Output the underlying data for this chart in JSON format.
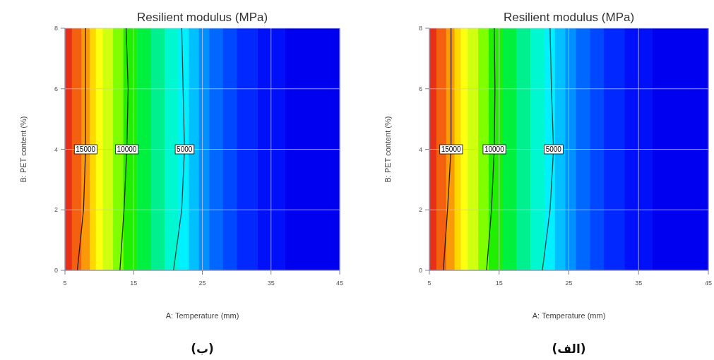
{
  "chart_data": [
    {
      "type": "line",
      "title": "Resilient modulus (MPa)",
      "xlabel": "A: Temperature (mm)",
      "ylabel": "B: PET content (%)",
      "annotations": [
        "(ب)"
      ],
      "xlim": [
        5,
        45
      ],
      "ylim": [
        0,
        8
      ],
      "xticks": [
        5,
        15,
        25,
        35,
        45
      ],
      "yticks": [
        0,
        2,
        4,
        6,
        8
      ],
      "grid": true,
      "marker": "none",
      "line_style": "solid",
      "bands": [
        {
          "axis": "x",
          "from": 5,
          "to": 6,
          "color": "#e83018"
        },
        {
          "axis": "x",
          "from": 6,
          "to": 7.4,
          "color": "#f26010"
        },
        {
          "axis": "x",
          "from": 7.4,
          "to": 8.6,
          "color": "#fa9a08"
        },
        {
          "axis": "x",
          "from": 8.6,
          "to": 9.5,
          "color": "#ffd800"
        },
        {
          "axis": "x",
          "from": 9.5,
          "to": 10.5,
          "color": "#ffff10"
        },
        {
          "axis": "x",
          "from": 10.5,
          "to": 12,
          "color": "#d0ff10"
        },
        {
          "axis": "x",
          "from": 12,
          "to": 13.5,
          "color": "#80ff00"
        },
        {
          "axis": "x",
          "from": 13.5,
          "to": 15.5,
          "color": "#20f000"
        },
        {
          "axis": "x",
          "from": 15.5,
          "to": 17.5,
          "color": "#00f040"
        },
        {
          "axis": "x",
          "from": 17.5,
          "to": 19.5,
          "color": "#00f090"
        },
        {
          "axis": "x",
          "from": 19.5,
          "to": 21.5,
          "color": "#00f8d0"
        },
        {
          "axis": "x",
          "from": 21.5,
          "to": 23,
          "color": "#00f0ff"
        },
        {
          "axis": "x",
          "from": 23,
          "to": 24.5,
          "color": "#00c0ff"
        },
        {
          "axis": "x",
          "from": 24.5,
          "to": 26,
          "color": "#0090ff"
        },
        {
          "axis": "x",
          "from": 26,
          "to": 28,
          "color": "#0068ff"
        },
        {
          "axis": "x",
          "from": 28,
          "to": 30,
          "color": "#0048ff"
        },
        {
          "axis": "x",
          "from": 30,
          "to": 33,
          "color": "#0028ff"
        },
        {
          "axis": "x",
          "from": 33,
          "to": 37,
          "color": "#0010f8"
        },
        {
          "axis": "x",
          "from": 37,
          "to": 45,
          "color": "#0000f0"
        }
      ],
      "series": [
        {
          "name": "15000",
          "color": "#301808",
          "x": [
            6.8,
            7.7,
            8.0,
            8.0,
            8.0
          ],
          "values": [
            0,
            2,
            4,
            6,
            8
          ]
        },
        {
          "name": "10000",
          "color": "#103010",
          "x": [
            13.0,
            13.6,
            14.0,
            14.2,
            13.9
          ],
          "values": [
            0,
            2,
            4,
            6,
            8
          ]
        },
        {
          "name": "5000",
          "color": "#104848",
          "x": [
            20.8,
            22.0,
            22.4,
            22.2,
            22.0
          ],
          "values": [
            0,
            2,
            4,
            6,
            8
          ]
        }
      ]
    },
    {
      "type": "line",
      "title": "Resilient modulus (MPa)",
      "xlabel": "A: Temperature (mm)",
      "ylabel": "B: PET content (%)",
      "annotations": [
        "(الف)"
      ],
      "xlim": [
        5,
        45
      ],
      "ylim": [
        0,
        8
      ],
      "xticks": [
        5,
        15,
        25,
        35,
        45
      ],
      "yticks": [
        0,
        2,
        4,
        6,
        8
      ],
      "grid": true,
      "marker": "none",
      "line_style": "solid",
      "bands": [
        {
          "axis": "x",
          "from": 5,
          "to": 6,
          "color": "#e83018"
        },
        {
          "axis": "x",
          "from": 6,
          "to": 7.4,
          "color": "#f26010"
        },
        {
          "axis": "x",
          "from": 7.4,
          "to": 8.6,
          "color": "#fa9a08"
        },
        {
          "axis": "x",
          "from": 8.6,
          "to": 9.5,
          "color": "#ffd800"
        },
        {
          "axis": "x",
          "from": 9.5,
          "to": 10.5,
          "color": "#ffff10"
        },
        {
          "axis": "x",
          "from": 10.5,
          "to": 12,
          "color": "#d0ff10"
        },
        {
          "axis": "x",
          "from": 12,
          "to": 13.5,
          "color": "#80ff00"
        },
        {
          "axis": "x",
          "from": 13.5,
          "to": 15.5,
          "color": "#20f000"
        },
        {
          "axis": "x",
          "from": 15.5,
          "to": 17.5,
          "color": "#00f040"
        },
        {
          "axis": "x",
          "from": 17.5,
          "to": 19.5,
          "color": "#00f090"
        },
        {
          "axis": "x",
          "from": 19.5,
          "to": 21.5,
          "color": "#00f8d0"
        },
        {
          "axis": "x",
          "from": 21.5,
          "to": 23,
          "color": "#00f0ff"
        },
        {
          "axis": "x",
          "from": 23,
          "to": 24.5,
          "color": "#00c0ff"
        },
        {
          "axis": "x",
          "from": 24.5,
          "to": 26,
          "color": "#0090ff"
        },
        {
          "axis": "x",
          "from": 26,
          "to": 28,
          "color": "#0068ff"
        },
        {
          "axis": "x",
          "from": 28,
          "to": 30,
          "color": "#0048ff"
        },
        {
          "axis": "x",
          "from": 30,
          "to": 33,
          "color": "#0028ff"
        },
        {
          "axis": "x",
          "from": 33,
          "to": 37,
          "color": "#0010f8"
        },
        {
          "axis": "x",
          "from": 37,
          "to": 45,
          "color": "#0000f0"
        }
      ],
      "series": [
        {
          "name": "15000",
          "color": "#301808",
          "x": [
            7.0,
            7.6,
            8.1,
            8.1,
            8.1
          ],
          "values": [
            0,
            2,
            4,
            6,
            8
          ]
        },
        {
          "name": "10000",
          "color": "#103010",
          "x": [
            13.2,
            13.9,
            14.3,
            14.4,
            14.3
          ],
          "values": [
            0,
            2,
            4,
            6,
            8
          ]
        },
        {
          "name": "5000",
          "color": "#104848",
          "x": [
            21.2,
            22.3,
            22.8,
            22.5,
            22.3
          ],
          "values": [
            0,
            2,
            4,
            6,
            8
          ]
        }
      ]
    }
  ]
}
